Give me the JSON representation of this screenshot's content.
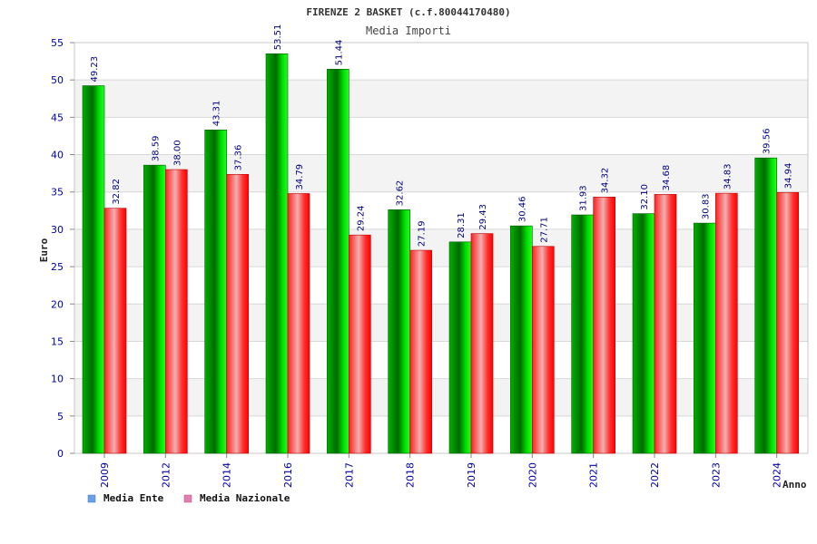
{
  "chart_data": {
    "type": "bar",
    "title": "FIRENZE 2 BASKET (c.f.80044170480)",
    "subtitle": "Media Importi",
    "xlabel": "Anno",
    "ylabel": "Euro",
    "ylim": [
      0,
      55
    ],
    "yticks": [
      "0",
      "5",
      "10",
      "15",
      "20",
      "25",
      "30",
      "35",
      "40",
      "45",
      "50",
      "55"
    ],
    "categories": [
      "2009",
      "2012",
      "2014",
      "2016",
      "2017",
      "2018",
      "2019",
      "2020",
      "2021",
      "2022",
      "2023",
      "2024"
    ],
    "series": [
      {
        "name": "Media Ente",
        "color": "#00b400",
        "values": [
          49.23,
          38.59,
          43.31,
          53.51,
          51.44,
          32.62,
          28.31,
          30.46,
          31.93,
          32.1,
          30.83,
          39.56
        ],
        "labels": [
          "49.23",
          "38.59",
          "43.31",
          "53.51",
          "51.44",
          "32.62",
          "28.31",
          "30.46",
          "31.93",
          "32.10",
          "30.83",
          "39.56"
        ]
      },
      {
        "name": "Media Nazionale",
        "color": "#ff1a1a",
        "values": [
          32.82,
          38.0,
          37.36,
          34.79,
          29.24,
          27.19,
          29.43,
          27.71,
          34.32,
          34.68,
          34.83,
          34.94
        ],
        "labels": [
          "32.82",
          "38.00",
          "37.36",
          "34.79",
          "29.24",
          "27.19",
          "29.43",
          "27.71",
          "34.32",
          "34.68",
          "34.83",
          "34.94"
        ]
      }
    ],
    "legend": [
      {
        "label": "Media Ente",
        "color": "#6aa0e8"
      },
      {
        "label": "Media Nazionale",
        "color": "#e080b0"
      }
    ],
    "legend_position": "bottom-left",
    "grid": true,
    "colors": {
      "title": "#333333",
      "tick_text": "#0000a0",
      "value_label": "#000080",
      "band": "#f3f3f3",
      "grid": "#d8d8d8",
      "axis": "#888888"
    }
  }
}
